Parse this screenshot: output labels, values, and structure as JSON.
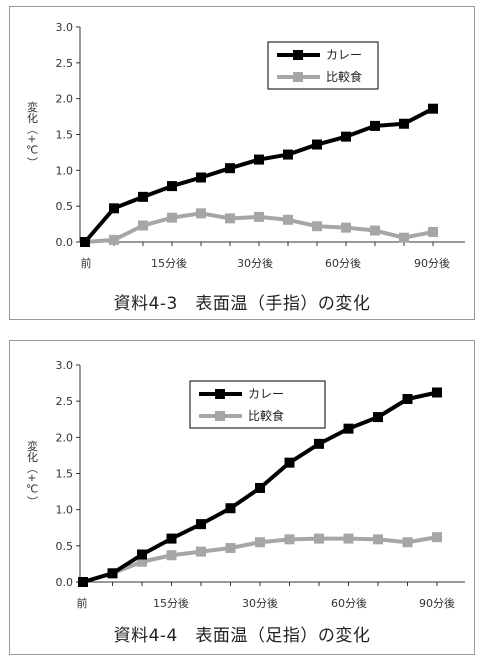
{
  "chart_data": [
    {
      "type": "line",
      "title": "資料4-3　表面温（手指）の変化",
      "ylabel": "変化（+℃）",
      "ylim": [
        0,
        3.0
      ],
      "yticks": [
        "0.0",
        "0.5",
        "1.0",
        "1.5",
        "2.0",
        "2.5",
        "3.0"
      ],
      "xticks": [
        "前",
        "15分後",
        "30分後",
        "60分後",
        "90分後"
      ],
      "legend_position": "top-right",
      "series": [
        {
          "name": "カレー",
          "color": "#000000",
          "values": [
            0.0,
            0.47,
            0.63,
            0.78,
            0.9,
            1.03,
            1.15,
            1.22,
            1.36,
            1.47,
            1.62,
            1.65,
            1.86
          ]
        },
        {
          "name": "比較食",
          "color": "#a6a6a6",
          "values": [
            0.0,
            0.03,
            0.23,
            0.34,
            0.4,
            0.33,
            0.35,
            0.31,
            0.22,
            0.2,
            0.16,
            0.06,
            0.14
          ]
        }
      ]
    },
    {
      "type": "line",
      "title": "資料4-4　表面温（足指）の変化",
      "ylabel": "変化（+℃）",
      "ylim": [
        0,
        3.0
      ],
      "yticks": [
        "0.0",
        "0.5",
        "1.0",
        "1.5",
        "2.0",
        "2.5",
        "3.0"
      ],
      "xticks": [
        "前",
        "15分後",
        "30分後",
        "60分後",
        "90分後"
      ],
      "legend_position": "top-right",
      "series": [
        {
          "name": "カレー",
          "color": "#000000",
          "values": [
            0.0,
            0.12,
            0.38,
            0.6,
            0.8,
            1.02,
            1.3,
            1.65,
            1.91,
            2.12,
            2.28,
            2.53,
            2.62
          ]
        },
        {
          "name": "比較食",
          "color": "#a6a6a6",
          "values": [
            0.0,
            0.12,
            0.28,
            0.37,
            0.42,
            0.47,
            0.55,
            0.59,
            0.6,
            0.6,
            0.59,
            0.55,
            0.62
          ]
        }
      ]
    }
  ]
}
